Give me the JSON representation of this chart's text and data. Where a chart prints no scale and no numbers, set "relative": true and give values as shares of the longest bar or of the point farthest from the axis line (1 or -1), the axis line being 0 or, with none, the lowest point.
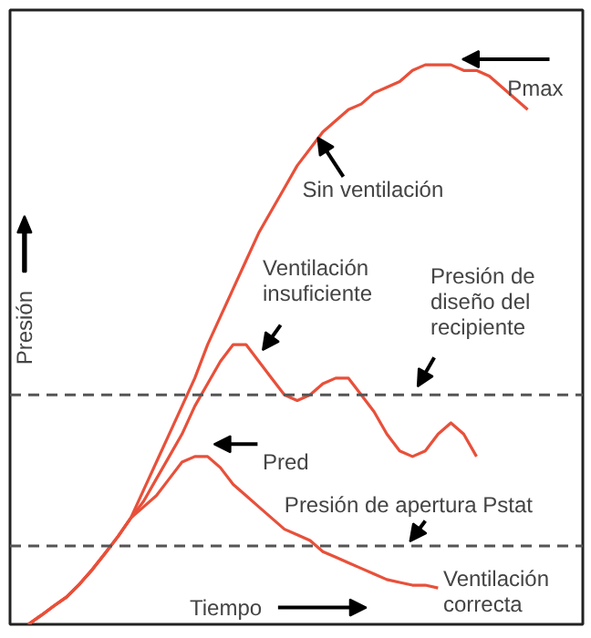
{
  "chart_data": {
    "type": "line",
    "relative": true,
    "xlabel": "Tiempo",
    "ylabel": "Presión",
    "categories": [
      null,
      null,
      null,
      null,
      null,
      null,
      null,
      null,
      null,
      null,
      null,
      null,
      null,
      null,
      null,
      null,
      null,
      null,
      null,
      null,
      null,
      null,
      null,
      null,
      null,
      null,
      null,
      null,
      null,
      null,
      null,
      null,
      null,
      null,
      null,
      null,
      null,
      null,
      null,
      null,
      null
    ],
    "series": [
      {
        "name": "Sin ventilación",
        "color": "#e8503a",
        "values": [
          0.0,
          0.016,
          0.033,
          0.049,
          0.072,
          0.098,
          0.127,
          0.157,
          0.19,
          0.24,
          0.29,
          0.34,
          0.39,
          0.44,
          0.5,
          0.55,
          0.6,
          0.65,
          0.7,
          0.74,
          0.78,
          0.82,
          0.85,
          0.88,
          0.9,
          0.92,
          0.93,
          0.95,
          0.96,
          0.97,
          0.99,
          1.0,
          1.0,
          1.0,
          0.99,
          0.99,
          0.98,
          0.96,
          0.94,
          0.92,
          null
        ]
      },
      {
        "name": "Ventilación insuficiente",
        "color": "#e8503a",
        "values": [
          0.0,
          0.016,
          0.033,
          0.049,
          0.072,
          0.098,
          0.127,
          0.157,
          0.19,
          0.22,
          0.26,
          0.3,
          0.34,
          0.39,
          0.43,
          0.47,
          0.5,
          0.5,
          0.47,
          0.44,
          0.41,
          0.4,
          0.41,
          0.43,
          0.44,
          0.44,
          0.41,
          0.38,
          0.34,
          0.31,
          0.3,
          0.31,
          0.34,
          0.36,
          0.34,
          0.3,
          null,
          null,
          null,
          null,
          null
        ]
      },
      {
        "name": "Ventilación correcta",
        "color": "#e8503a",
        "values": [
          0.0,
          0.016,
          0.033,
          0.049,
          0.072,
          0.098,
          0.127,
          0.157,
          0.19,
          0.21,
          0.23,
          0.26,
          0.29,
          0.3,
          0.3,
          0.28,
          0.25,
          0.23,
          0.21,
          0.19,
          0.17,
          0.16,
          0.15,
          0.13,
          0.12,
          0.11,
          0.1,
          0.09,
          0.08,
          0.075,
          0.07,
          0.07,
          0.065,
          null,
          null,
          null,
          null,
          null,
          null,
          null,
          null
        ]
      }
    ],
    "ref_lines": [
      {
        "axis": "y",
        "value": 0.41,
        "label": "Presión de diseño del recipiente",
        "color": "#555555",
        "line_style": "dashed"
      },
      {
        "axis": "y",
        "value": 0.14,
        "label": "Presión de apertura Pstat",
        "color": "#555555",
        "line_style": "dashed"
      }
    ],
    "annotations": [
      "Pmax",
      "Pred"
    ]
  }
}
